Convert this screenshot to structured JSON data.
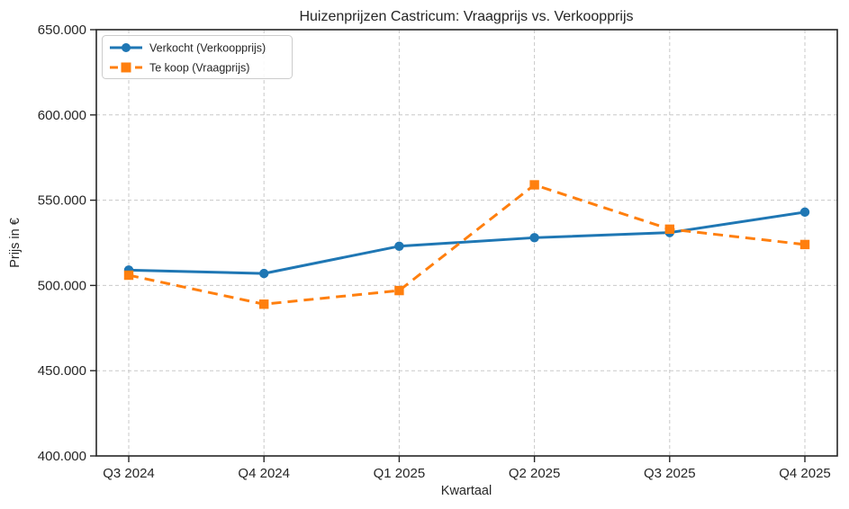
{
  "chart_data": {
    "type": "line",
    "title": "Huizenprijzen Castricum: Vraagprijs vs. Verkoopprijs",
    "xlabel": "Kwartaal",
    "ylabel": "Prijs in €",
    "categories": [
      "Q3 2024",
      "Q4 2024",
      "Q1 2025",
      "Q2 2025",
      "Q3 2025",
      "Q4 2025"
    ],
    "series": [
      {
        "name": "Verkocht (Verkoopprijs)",
        "values": [
          509000,
          507000,
          523000,
          528000,
          531000,
          543000
        ],
        "color": "#1f77b4",
        "line_style": "solid",
        "marker": "circle"
      },
      {
        "name": "Te koop (Vraagprijs)",
        "values": [
          506000,
          489000,
          497000,
          559000,
          533000,
          524000
        ],
        "color": "#ff7f0e",
        "line_style": "dashed",
        "marker": "square"
      }
    ],
    "ylim": [
      400000,
      650000
    ],
    "ytick_step": 50000,
    "ytick_labels": [
      "400.000",
      "450.000",
      "500.000",
      "550.000",
      "600.000",
      "650.000"
    ],
    "grid": true,
    "gridline_color": "#c9c9c9",
    "legend_position": "upper left"
  }
}
